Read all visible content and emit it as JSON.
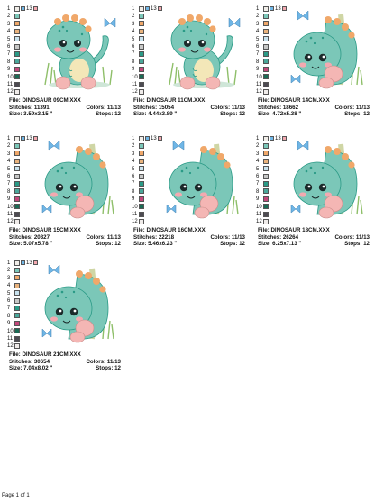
{
  "palette": [
    "#f1eee9",
    "#7bc7b8",
    "#f0a86a",
    "#e9b37d",
    "#c9e3ef",
    "#c7c8c7",
    "#2a9a86",
    "#4aa79a",
    "#c3477a",
    "#1b6b54",
    "#4d4b52",
    "#f0ecea"
  ],
  "swatch_numbers": [
    "1",
    "2",
    "3",
    "4",
    "5",
    "6",
    "7",
    "8",
    "9",
    "10",
    "11",
    "12"
  ],
  "header_extra": "13",
  "cards": [
    {
      "file": "File: DINOSAUR 09CM.XXX",
      "stitches": "Stitches: 11391",
      "colors": "Colors: 11/13",
      "size": "Size: 3.59x3.15 \"",
      "stops": "Stops: 12",
      "pose": "sitting"
    },
    {
      "file": "File: DINOSAUR 11CM.XXX",
      "stitches": "Stitches: 15054",
      "colors": "Colors: 11/13",
      "size": "Size: 4.44x3.89 \"",
      "stops": "Stops: 12",
      "pose": "sitting"
    },
    {
      "file": "File: DINOSAUR 14CM.XXX",
      "stitches": "Stitches: 18662",
      "colors": "Colors: 11/13",
      "size": "Size: 4.72x5.38 \"",
      "stops": "Stops: 12",
      "pose": "peek"
    },
    {
      "file": "File: DINOSAUR 15CM.XXX",
      "stitches": "Stitches: 20327",
      "colors": "Colors: 11/13",
      "size": "Size: 5.07x5.78 \"",
      "stops": "Stops: 12",
      "pose": "peek"
    },
    {
      "file": "File: DINOSAUR 16CM.XXX",
      "stitches": "Stitches: 22218",
      "colors": "Colors: 11/13",
      "size": "Size: 5.46x6.23 \"",
      "stops": "Stops: 12",
      "pose": "peek"
    },
    {
      "file": "File: DINOSAUR 18CM.XXX",
      "stitches": "Stitches: 26264",
      "colors": "Colors: 11/13",
      "size": "Size: 6.25x7.13 \"",
      "stops": "Stops: 12",
      "pose": "peek"
    },
    {
      "file": "File: DINOSAUR 21CM.XXX",
      "stitches": "Stitches: 30654",
      "colors": "Colors: 11/13",
      "size": "Size: 7.04x8.02 \"",
      "stops": "Stops: 12",
      "pose": "peek"
    }
  ],
  "footer": "Page 1 of 1"
}
